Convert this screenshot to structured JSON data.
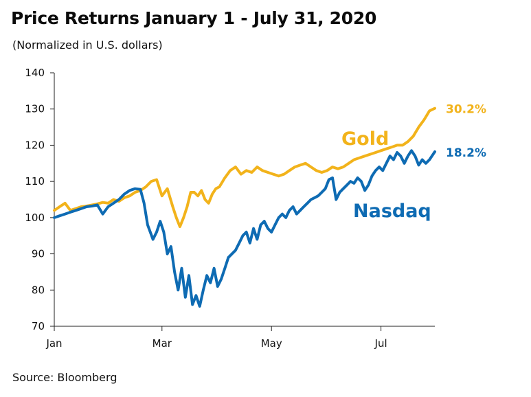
{
  "title": "Price Returns January 1 - July 31, 2020",
  "subtitle": "(Normalized in U.S. dollars)",
  "source": "Source: Bloomberg",
  "colors": {
    "gold": "#F2B31B",
    "nasdaq": "#0E6BB3"
  },
  "chart_data": {
    "type": "line",
    "ylim": [
      70,
      140
    ],
    "yticks": [
      70,
      80,
      90,
      100,
      110,
      120,
      130,
      140
    ],
    "xlim": [
      0,
      212
    ],
    "xticks": [
      {
        "label": "Jan",
        "day": 0
      },
      {
        "label": "Mar",
        "day": 60
      },
      {
        "label": "May",
        "day": 121
      },
      {
        "label": "Jul",
        "day": 182
      }
    ],
    "grid": false,
    "series": [
      {
        "name": "Gold",
        "end_label": "30.2%",
        "x": [
          0,
          3,
          6,
          9,
          12,
          15,
          18,
          21,
          24,
          27,
          30,
          33,
          36,
          39,
          42,
          45,
          48,
          51,
          54,
          57,
          60,
          63,
          66,
          68,
          70,
          72,
          74,
          76,
          78,
          80,
          82,
          84,
          86,
          88,
          90,
          92,
          95,
          98,
          101,
          104,
          107,
          110,
          113,
          116,
          119,
          122,
          125,
          128,
          131,
          134,
          137,
          140,
          143,
          146,
          149,
          152,
          155,
          158,
          161,
          164,
          167,
          170,
          173,
          176,
          179,
          182,
          185,
          188,
          191,
          194,
          197,
          200,
          203,
          206,
          209,
          212
        ],
        "values": [
          102,
          103,
          104,
          102,
          102.5,
          103,
          103.2,
          103.5,
          103.8,
          104.2,
          104,
          105,
          104.5,
          105.5,
          106,
          107,
          107.5,
          108.5,
          110,
          110.5,
          106,
          108,
          103,
          100,
          97.5,
          100,
          103,
          107,
          107,
          106,
          107.5,
          105,
          104,
          106.5,
          108,
          108.5,
          111,
          113,
          114,
          112,
          113,
          112.5,
          114,
          113,
          112.5,
          112,
          111.5,
          112,
          113,
          114,
          114.5,
          115,
          114,
          113,
          112.5,
          113,
          114,
          113.5,
          114,
          115,
          116,
          116.5,
          117,
          117.5,
          118,
          118.5,
          119,
          119.5,
          120,
          120,
          121,
          122.5,
          125,
          127,
          129.5,
          130.2
        ]
      },
      {
        "name": "Nasdaq",
        "end_label": "18.2%",
        "x": [
          0,
          3,
          6,
          9,
          12,
          15,
          18,
          21,
          24,
          27,
          30,
          33,
          36,
          39,
          42,
          45,
          48,
          50,
          52,
          55,
          57,
          59,
          61,
          63,
          65,
          67,
          69,
          71,
          73,
          75,
          77,
          79,
          81,
          83,
          85,
          87,
          89,
          91,
          93,
          95,
          97,
          99,
          101,
          103,
          105,
          107,
          109,
          111,
          113,
          115,
          117,
          119,
          121,
          123,
          125,
          127,
          129,
          131,
          133,
          135,
          137,
          139,
          141,
          143,
          145,
          147,
          149,
          151,
          153,
          155,
          157,
          159,
          161,
          163,
          165,
          167,
          169,
          171,
          173,
          175,
          177,
          179,
          181,
          183,
          185,
          187,
          189,
          191,
          193,
          195,
          197,
          199,
          201,
          203,
          205,
          207,
          209,
          212
        ],
        "values": [
          100,
          100.5,
          101,
          101.5,
          102,
          102.5,
          103,
          103.2,
          103.5,
          101,
          103,
          104,
          105,
          106.5,
          107.5,
          108,
          107.8,
          104,
          98,
          94,
          96,
          99,
          96,
          90,
          92,
          85,
          80,
          86,
          78,
          84,
          76,
          78.5,
          75.5,
          80,
          84,
          82,
          86,
          81,
          83,
          86,
          89,
          90,
          91,
          93,
          95,
          96,
          93,
          97,
          94,
          98,
          99,
          97,
          96,
          98,
          100,
          101,
          100,
          102,
          103,
          101,
          102,
          103,
          104,
          105,
          105.5,
          106,
          107,
          108,
          110.5,
          111,
          105,
          107,
          108,
          109,
          110,
          109.5,
          111,
          110,
          107.5,
          109,
          111.5,
          113,
          114,
          113,
          115,
          117,
          116,
          118,
          117,
          115,
          117,
          118.5,
          117,
          114.5,
          116,
          115,
          116,
          118.2
        ]
      }
    ]
  }
}
